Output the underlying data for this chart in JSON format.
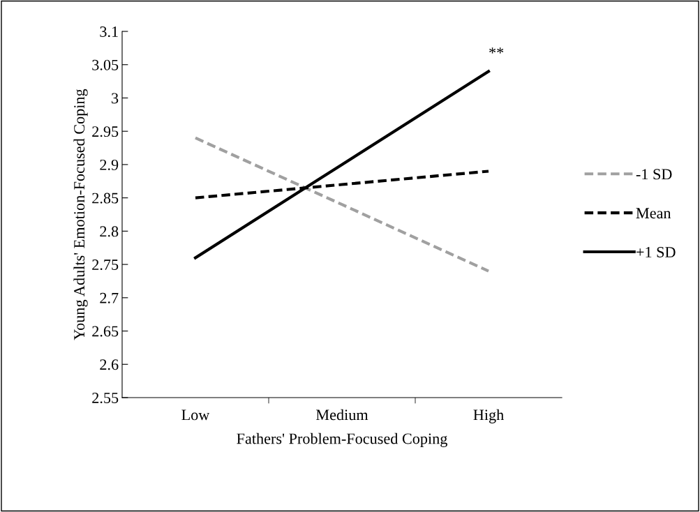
{
  "chart_data": {
    "type": "line",
    "xlabel": "Fathers' Problem-Focused Coping",
    "ylabel": "Young Adults' Emotion-Focused Coping",
    "categories": [
      "Low",
      "Medium",
      "High"
    ],
    "series": [
      {
        "name": "-1 SD",
        "color": "#a0a0a0",
        "line_style": "dashed",
        "values": [
          2.94,
          2.84,
          2.74
        ]
      },
      {
        "name": "Mean",
        "color": "#000000",
        "line_style": "dashed",
        "values": [
          2.85,
          2.87,
          2.89
        ]
      },
      {
        "name": "+1 SD",
        "color": "#000000",
        "line_style": "solid",
        "values": [
          2.76,
          2.9,
          3.04
        ]
      }
    ],
    "ylim": [
      2.55,
      3.1
    ],
    "yticks": [
      2.55,
      2.6,
      2.65,
      2.7,
      2.75,
      2.8,
      2.85,
      2.9,
      2.95,
      3,
      3.05,
      3.1
    ],
    "annotations": [
      {
        "text": "**",
        "x": "High",
        "y": 3.04
      }
    ],
    "grid": false,
    "legend": "right",
    "marker": "none"
  }
}
